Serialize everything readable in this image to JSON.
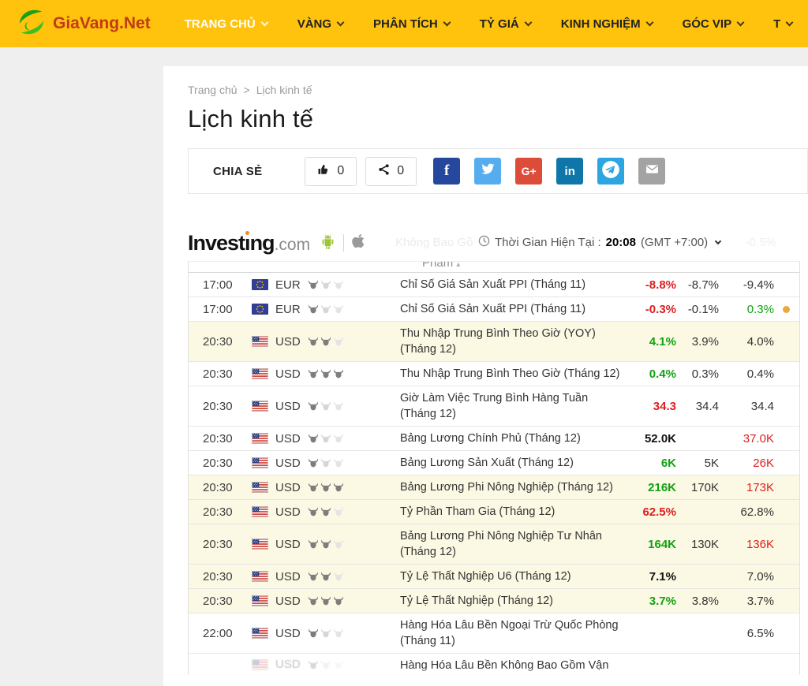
{
  "navbar": {
    "brand": "GiaVang.Net",
    "items": [
      {
        "label": "TRANG CHỦ",
        "active": true
      },
      {
        "label": "VÀNG",
        "active": false
      },
      {
        "label": "PHÂN TÍCH",
        "active": false
      },
      {
        "label": "TỶ GIÁ",
        "active": false
      },
      {
        "label": "KINH NGHIỆM",
        "active": false
      },
      {
        "label": "GÓC VIP",
        "active": false
      },
      {
        "label": "T",
        "active": false
      }
    ]
  },
  "breadcrumb": {
    "home": "Trang chủ",
    "sep": ">",
    "current": "Lịch kinh tế"
  },
  "page": {
    "title": "Lịch kinh tế"
  },
  "share": {
    "label": "CHIA SẺ",
    "like_count": "0",
    "share_count": "0",
    "buttons": [
      {
        "name": "facebook",
        "color": "#26479E"
      },
      {
        "name": "twitter",
        "color": "#55ACEE"
      },
      {
        "name": "googleplus",
        "color": "#DD4B39"
      },
      {
        "name": "linkedin",
        "color": "#0E76A8"
      },
      {
        "name": "telegram",
        "color": "#2CA5E0"
      },
      {
        "name": "email",
        "color": "#A3A3A3"
      }
    ],
    "googleplus_glyph": "G+",
    "linkedin_glyph": "in",
    "facebook_glyph": "f"
  },
  "widget": {
    "logo_main": "Investing",
    "logo_suffix": ".com",
    "ghost_row_left": "Không Bao Gồ",
    "ghost_row_right": "-0.5%",
    "clock_label": "Thời Gian Hiện Tại :",
    "clock_time": "20:08",
    "clock_zone": "(GMT +7:00)",
    "partial_header_text": "Phẩm"
  },
  "theme": {
    "navbar_bg": "#FFC30D",
    "brand_text": "#C23A1A",
    "highlight_row": "#FBF9E3",
    "positive": "#12A012",
    "negative": "#DC1F1F",
    "alert_dot": "#E9A93C"
  },
  "table": {
    "rows": [
      {
        "time": "17:00",
        "currency": "EUR",
        "flag": "eu",
        "bulls": 1,
        "name": "Chỉ Số Giá Sản Xuất PPI (Tháng 11)",
        "actual": "-8.8%",
        "actual_style": "red",
        "forecast": "-8.7%",
        "previous": "-9.4%",
        "previous_style": "",
        "dot": false,
        "highlight": false,
        "partial": false
      },
      {
        "time": "17:00",
        "currency": "EUR",
        "flag": "eu",
        "bulls": 1,
        "name": "Chỉ Số Giá Sản Xuất PPI (Tháng 11)",
        "actual": "-0.3%",
        "actual_style": "red",
        "forecast": "-0.1%",
        "previous": "0.3%",
        "previous_style": "green",
        "dot": true,
        "highlight": false,
        "partial": false
      },
      {
        "time": "20:30",
        "currency": "USD",
        "flag": "us",
        "bulls": 2,
        "name": "Thu Nhập Trung Bình Theo Giờ (YOY) (Tháng 12)",
        "actual": "4.1%",
        "actual_style": "green",
        "forecast": "3.9%",
        "previous": "4.0%",
        "previous_style": "",
        "dot": false,
        "highlight": true,
        "partial": false
      },
      {
        "time": "20:30",
        "currency": "USD",
        "flag": "us",
        "bulls": 3,
        "name": "Thu Nhập Trung Bình Theo Giờ (Tháng 12)",
        "actual": "0.4%",
        "actual_style": "green",
        "forecast": "0.3%",
        "previous": "0.4%",
        "previous_style": "",
        "dot": false,
        "highlight": false,
        "partial": false
      },
      {
        "time": "20:30",
        "currency": "USD",
        "flag": "us",
        "bulls": 1,
        "name": "Giờ Làm Việc Trung Bình Hàng Tuần (Tháng 12)",
        "actual": "34.3",
        "actual_style": "red",
        "forecast": "34.4",
        "previous": "34.4",
        "previous_style": "",
        "dot": false,
        "highlight": false,
        "partial": false
      },
      {
        "time": "20:30",
        "currency": "USD",
        "flag": "us",
        "bulls": 1,
        "name": "Bảng Lương Chính Phủ (Tháng 12)",
        "actual": "52.0K",
        "actual_style": "black",
        "forecast": "",
        "previous": "37.0K",
        "previous_style": "red",
        "dot": false,
        "highlight": false,
        "partial": false
      },
      {
        "time": "20:30",
        "currency": "USD",
        "flag": "us",
        "bulls": 1,
        "name": "Bảng Lương Sản Xuất (Tháng 12)",
        "actual": "6K",
        "actual_style": "green",
        "forecast": "5K",
        "previous": "26K",
        "previous_style": "red",
        "dot": false,
        "highlight": false,
        "partial": false
      },
      {
        "time": "20:30",
        "currency": "USD",
        "flag": "us",
        "bulls": 3,
        "name": "Bảng Lương Phi Nông Nghiệp (Tháng 12)",
        "actual": "216K",
        "actual_style": "green",
        "forecast": "170K",
        "previous": "173K",
        "previous_style": "red",
        "dot": false,
        "highlight": true,
        "partial": false
      },
      {
        "time": "20:30",
        "currency": "USD",
        "flag": "us",
        "bulls": 2,
        "name": "Tỷ Phần Tham Gia (Tháng 12)",
        "actual": "62.5%",
        "actual_style": "red",
        "forecast": "",
        "previous": "62.8%",
        "previous_style": "",
        "dot": false,
        "highlight": true,
        "partial": false
      },
      {
        "time": "20:30",
        "currency": "USD",
        "flag": "us",
        "bulls": 2,
        "name": "Bảng Lương Phi Nông Nghiệp Tư Nhân (Tháng 12)",
        "actual": "164K",
        "actual_style": "green",
        "forecast": "130K",
        "previous": "136K",
        "previous_style": "red",
        "dot": false,
        "highlight": true,
        "partial": false
      },
      {
        "time": "20:30",
        "currency": "USD",
        "flag": "us",
        "bulls": 2,
        "name": "Tỷ Lệ Thất Nghiệp U6 (Tháng 12)",
        "actual": "7.1%",
        "actual_style": "black",
        "forecast": "",
        "previous": "7.0%",
        "previous_style": "",
        "dot": false,
        "highlight": true,
        "partial": false
      },
      {
        "time": "20:30",
        "currency": "USD",
        "flag": "us",
        "bulls": 3,
        "name": "Tỷ Lệ Thất Nghiệp (Tháng 12)",
        "actual": "3.7%",
        "actual_style": "green",
        "forecast": "3.8%",
        "previous": "3.7%",
        "previous_style": "",
        "dot": false,
        "highlight": true,
        "partial": false
      },
      {
        "time": "22:00",
        "currency": "USD",
        "flag": "us",
        "bulls": 1,
        "name": "Hàng Hóa Lâu Bền Ngoại Trừ Quốc Phòng (Tháng 11)",
        "actual": "",
        "actual_style": "",
        "forecast": "",
        "previous": "6.5%",
        "previous_style": "",
        "dot": false,
        "highlight": false,
        "partial": false
      },
      {
        "time": "",
        "currency": "USD",
        "flag": "us",
        "bulls": 1,
        "name": "Hàng Hóa Lâu Bền Không Bao Gồm Vận",
        "actual": "",
        "actual_style": "",
        "forecast": "",
        "previous": "",
        "previous_style": "",
        "dot": false,
        "highlight": false,
        "partial": true
      }
    ]
  }
}
